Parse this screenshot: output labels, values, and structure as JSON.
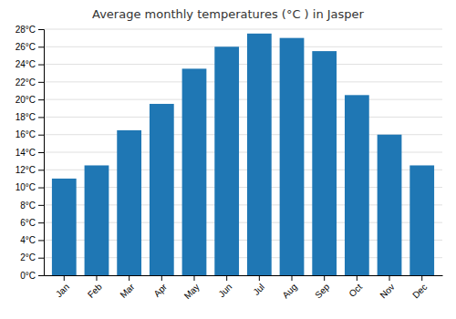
{
  "chart_data": {
    "type": "bar",
    "title": "Average monthly temperatures (°C ) in Jasper",
    "categories": [
      "Jan",
      "Feb",
      "Mar",
      "Apr",
      "May",
      "Jun",
      "Jul",
      "Aug",
      "Sep",
      "Oct",
      "Nov",
      "Dec"
    ],
    "values": [
      11.0,
      12.5,
      16.5,
      19.5,
      23.5,
      26.0,
      27.5,
      27.0,
      25.5,
      20.5,
      16.0,
      12.5
    ],
    "ylim": [
      0,
      28
    ],
    "yticks": [
      {
        "value": 0,
        "label": "0°C"
      },
      {
        "value": 2,
        "label": "2°C"
      },
      {
        "value": 4,
        "label": "4°C"
      },
      {
        "value": 6,
        "label": "6°C"
      },
      {
        "value": 8,
        "label": "8°C"
      },
      {
        "value": 10,
        "label": "10°C"
      },
      {
        "value": 12,
        "label": "12°C"
      },
      {
        "value": 14,
        "label": "14°C"
      },
      {
        "value": 16,
        "label": "16°C"
      },
      {
        "value": 18,
        "label": "18°C"
      },
      {
        "value": 20,
        "label": "20°C"
      },
      {
        "value": 22,
        "label": "22°C"
      },
      {
        "value": 24,
        "label": "24°C"
      },
      {
        "value": 26,
        "label": "26°C"
      },
      {
        "value": 28,
        "label": "28°C"
      }
    ],
    "grid": true
  }
}
